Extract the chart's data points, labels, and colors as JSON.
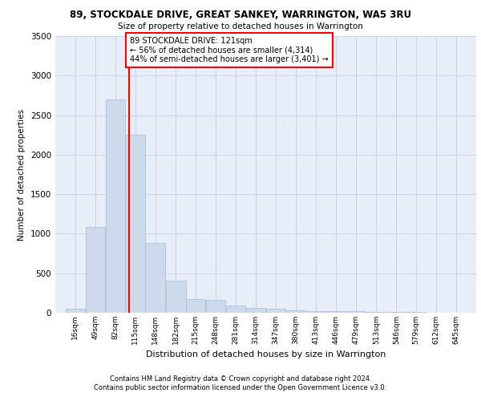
{
  "title": "89, STOCKDALE DRIVE, GREAT SANKEY, WARRINGTON, WA5 3RU",
  "subtitle": "Size of property relative to detached houses in Warrington",
  "xlabel": "Distribution of detached houses by size in Warrington",
  "ylabel": "Number of detached properties",
  "bar_color": "#ccdaeb",
  "bar_edge_color": "#a0bcd8",
  "grid_color": "#c8d4e4",
  "bg_color": "#e8eef8",
  "vline_x": 121,
  "vline_color": "red",
  "annotation_text": "89 STOCKDALE DRIVE: 121sqm\n← 56% of detached houses are smaller (4,314)\n44% of semi-detached houses are larger (3,401) →",
  "footer": "Contains HM Land Registry data © Crown copyright and database right 2024.\nContains public sector information licensed under the Open Government Licence v3.0.",
  "bin_edges": [
    16,
    49,
    82,
    115,
    148,
    182,
    215,
    248,
    281,
    314,
    347,
    380,
    413,
    446,
    479,
    513,
    546,
    579,
    612,
    645,
    678
  ],
  "counts": [
    55,
    1090,
    2700,
    2250,
    880,
    410,
    170,
    160,
    90,
    60,
    50,
    35,
    25,
    20,
    20,
    10,
    10,
    10,
    5,
    5
  ],
  "ylim": [
    0,
    3500
  ],
  "yticks": [
    0,
    500,
    1000,
    1500,
    2000,
    2500,
    3000,
    3500
  ]
}
